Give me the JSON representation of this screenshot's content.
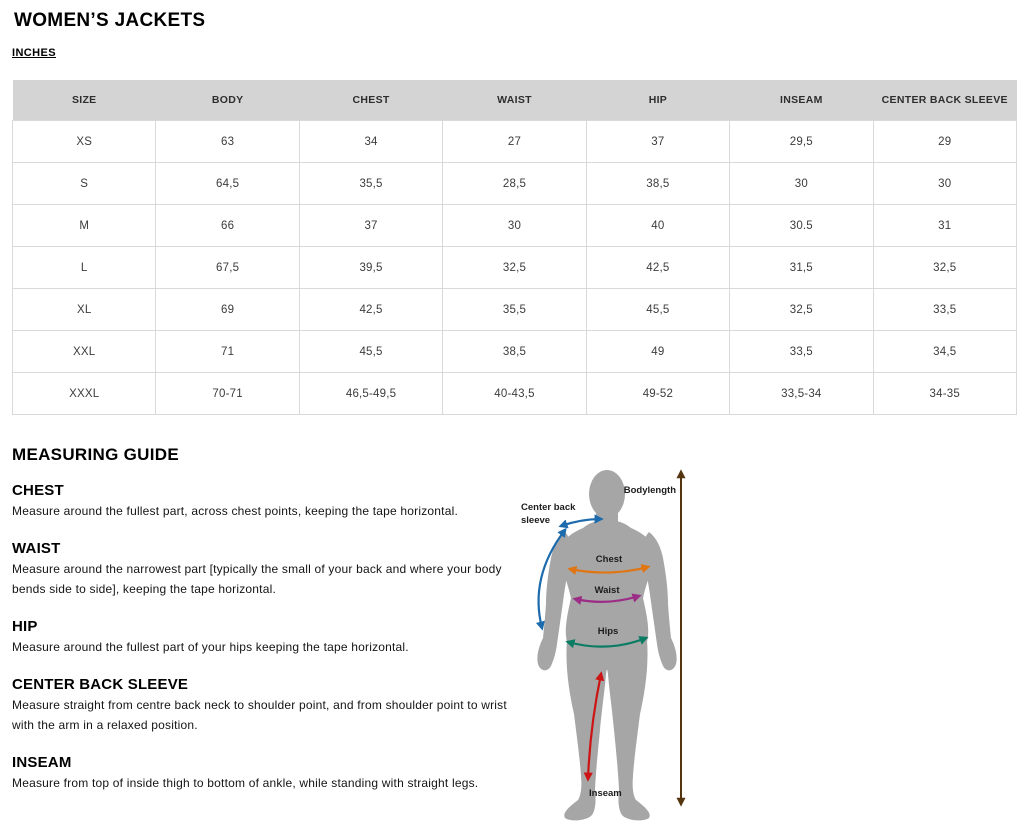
{
  "page": {
    "title": "WOMEN’S JACKETS",
    "units_label": "INCHES"
  },
  "table": {
    "headers": [
      "SIZE",
      "BODY",
      "CHEST",
      "WAIST",
      "HIP",
      "INSEAM",
      "CENTER BACK SLEEVE"
    ],
    "rows": [
      {
        "size": "XS",
        "values": [
          "63",
          "34",
          "27",
          "37",
          "29,5",
          "29"
        ]
      },
      {
        "size": "S",
        "values": [
          "64,5",
          "35,5",
          "28,5",
          "38,5",
          "30",
          "30"
        ]
      },
      {
        "size": "M",
        "values": [
          "66",
          "37",
          "30",
          "40",
          "30.5",
          "31"
        ]
      },
      {
        "size": "L",
        "values": [
          "67,5",
          "39,5",
          "32,5",
          "42,5",
          "31,5",
          "32,5"
        ]
      },
      {
        "size": "XL",
        "values": [
          "69",
          "42,5",
          "35,5",
          "45,5",
          "32,5",
          "33,5"
        ]
      },
      {
        "size": "XXL",
        "values": [
          "71",
          "45,5",
          "38,5",
          "49",
          "33,5",
          "34,5"
        ]
      },
      {
        "size": "XXXL",
        "values": [
          "70-71",
          "46,5-49,5",
          "40-43,5",
          "49-52",
          "33,5-34",
          "34-35"
        ]
      }
    ]
  },
  "guide": {
    "title": "MEASURING GUIDE",
    "sections": [
      {
        "heading": "CHEST",
        "body": "Measure around the fullest part, across chest points, keeping the tape horizontal."
      },
      {
        "heading": "WAIST",
        "body": "Measure around the narrowest part [typically the small of your back and where your body bends side to side], keeping the tape horizontal."
      },
      {
        "heading": "HIP",
        "body": "Measure around the fullest part of your hips keeping the tape horizontal."
      },
      {
        "heading": "CENTER BACK SLEEVE",
        "body": "Measure straight from centre back neck to shoulder point, and from shoulder point to wrist with the arm in a relaxed position."
      },
      {
        "heading": "INSEAM",
        "body": "Measure from top of inside thigh to bottom of ankle, while standing with straight legs."
      }
    ]
  },
  "diagram": {
    "labels": {
      "bodylength": "Bodylength",
      "center_back_line1": "Center back",
      "center_back_line2": "sleeve",
      "chest": "Chest",
      "waist": "Waist",
      "hips": "Hips",
      "inseam": "Inseam"
    },
    "colors": {
      "silhouette": "#a6a6a6",
      "bodylength": "#53350f",
      "center_back_sleeve": "#1d6bad",
      "chest": "#e07613",
      "waist": "#9b2d86",
      "hips": "#0b7c64",
      "inseam": "#cc1414"
    }
  },
  "style": {
    "table_header_bg": "#d4d4d4",
    "table_border": "#d9d9d9"
  }
}
